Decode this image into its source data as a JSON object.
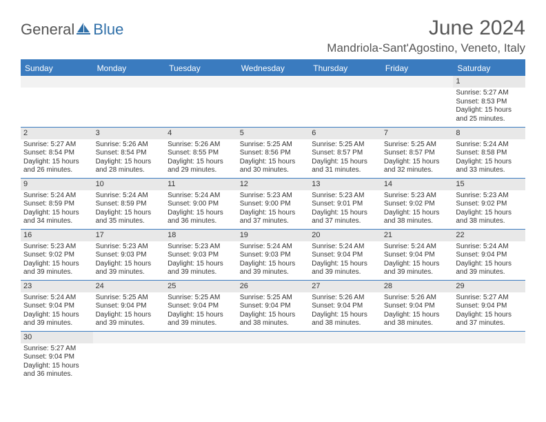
{
  "logo": {
    "general": "General",
    "blue": "Blue"
  },
  "header": {
    "month": "June 2024",
    "location": "Mandriola-Sant'Agostino, Veneto, Italy"
  },
  "colors": {
    "header_bg": "#3a7bbf",
    "border": "#3a7bbf",
    "daynum_bg": "#e8e8e8",
    "empty_daynum_bg": "#f2f2f2",
    "text": "#333333",
    "title": "#555555"
  },
  "daysOfWeek": [
    "Sunday",
    "Monday",
    "Tuesday",
    "Wednesday",
    "Thursday",
    "Friday",
    "Saturday"
  ],
  "grid": [
    [
      null,
      null,
      null,
      null,
      null,
      null,
      {
        "n": "1",
        "sunrise": "Sunrise: 5:27 AM",
        "sunset": "Sunset: 8:53 PM",
        "daylight": "Daylight: 15 hours and 25 minutes."
      }
    ],
    [
      {
        "n": "2",
        "sunrise": "Sunrise: 5:27 AM",
        "sunset": "Sunset: 8:54 PM",
        "daylight": "Daylight: 15 hours and 26 minutes."
      },
      {
        "n": "3",
        "sunrise": "Sunrise: 5:26 AM",
        "sunset": "Sunset: 8:54 PM",
        "daylight": "Daylight: 15 hours and 28 minutes."
      },
      {
        "n": "4",
        "sunrise": "Sunrise: 5:26 AM",
        "sunset": "Sunset: 8:55 PM",
        "daylight": "Daylight: 15 hours and 29 minutes."
      },
      {
        "n": "5",
        "sunrise": "Sunrise: 5:25 AM",
        "sunset": "Sunset: 8:56 PM",
        "daylight": "Daylight: 15 hours and 30 minutes."
      },
      {
        "n": "6",
        "sunrise": "Sunrise: 5:25 AM",
        "sunset": "Sunset: 8:57 PM",
        "daylight": "Daylight: 15 hours and 31 minutes."
      },
      {
        "n": "7",
        "sunrise": "Sunrise: 5:25 AM",
        "sunset": "Sunset: 8:57 PM",
        "daylight": "Daylight: 15 hours and 32 minutes."
      },
      {
        "n": "8",
        "sunrise": "Sunrise: 5:24 AM",
        "sunset": "Sunset: 8:58 PM",
        "daylight": "Daylight: 15 hours and 33 minutes."
      }
    ],
    [
      {
        "n": "9",
        "sunrise": "Sunrise: 5:24 AM",
        "sunset": "Sunset: 8:59 PM",
        "daylight": "Daylight: 15 hours and 34 minutes."
      },
      {
        "n": "10",
        "sunrise": "Sunrise: 5:24 AM",
        "sunset": "Sunset: 8:59 PM",
        "daylight": "Daylight: 15 hours and 35 minutes."
      },
      {
        "n": "11",
        "sunrise": "Sunrise: 5:24 AM",
        "sunset": "Sunset: 9:00 PM",
        "daylight": "Daylight: 15 hours and 36 minutes."
      },
      {
        "n": "12",
        "sunrise": "Sunrise: 5:23 AM",
        "sunset": "Sunset: 9:00 PM",
        "daylight": "Daylight: 15 hours and 37 minutes."
      },
      {
        "n": "13",
        "sunrise": "Sunrise: 5:23 AM",
        "sunset": "Sunset: 9:01 PM",
        "daylight": "Daylight: 15 hours and 37 minutes."
      },
      {
        "n": "14",
        "sunrise": "Sunrise: 5:23 AM",
        "sunset": "Sunset: 9:02 PM",
        "daylight": "Daylight: 15 hours and 38 minutes."
      },
      {
        "n": "15",
        "sunrise": "Sunrise: 5:23 AM",
        "sunset": "Sunset: 9:02 PM",
        "daylight": "Daylight: 15 hours and 38 minutes."
      }
    ],
    [
      {
        "n": "16",
        "sunrise": "Sunrise: 5:23 AM",
        "sunset": "Sunset: 9:02 PM",
        "daylight": "Daylight: 15 hours and 39 minutes."
      },
      {
        "n": "17",
        "sunrise": "Sunrise: 5:23 AM",
        "sunset": "Sunset: 9:03 PM",
        "daylight": "Daylight: 15 hours and 39 minutes."
      },
      {
        "n": "18",
        "sunrise": "Sunrise: 5:23 AM",
        "sunset": "Sunset: 9:03 PM",
        "daylight": "Daylight: 15 hours and 39 minutes."
      },
      {
        "n": "19",
        "sunrise": "Sunrise: 5:24 AM",
        "sunset": "Sunset: 9:03 PM",
        "daylight": "Daylight: 15 hours and 39 minutes."
      },
      {
        "n": "20",
        "sunrise": "Sunrise: 5:24 AM",
        "sunset": "Sunset: 9:04 PM",
        "daylight": "Daylight: 15 hours and 39 minutes."
      },
      {
        "n": "21",
        "sunrise": "Sunrise: 5:24 AM",
        "sunset": "Sunset: 9:04 PM",
        "daylight": "Daylight: 15 hours and 39 minutes."
      },
      {
        "n": "22",
        "sunrise": "Sunrise: 5:24 AM",
        "sunset": "Sunset: 9:04 PM",
        "daylight": "Daylight: 15 hours and 39 minutes."
      }
    ],
    [
      {
        "n": "23",
        "sunrise": "Sunrise: 5:24 AM",
        "sunset": "Sunset: 9:04 PM",
        "daylight": "Daylight: 15 hours and 39 minutes."
      },
      {
        "n": "24",
        "sunrise": "Sunrise: 5:25 AM",
        "sunset": "Sunset: 9:04 PM",
        "daylight": "Daylight: 15 hours and 39 minutes."
      },
      {
        "n": "25",
        "sunrise": "Sunrise: 5:25 AM",
        "sunset": "Sunset: 9:04 PM",
        "daylight": "Daylight: 15 hours and 39 minutes."
      },
      {
        "n": "26",
        "sunrise": "Sunrise: 5:25 AM",
        "sunset": "Sunset: 9:04 PM",
        "daylight": "Daylight: 15 hours and 38 minutes."
      },
      {
        "n": "27",
        "sunrise": "Sunrise: 5:26 AM",
        "sunset": "Sunset: 9:04 PM",
        "daylight": "Daylight: 15 hours and 38 minutes."
      },
      {
        "n": "28",
        "sunrise": "Sunrise: 5:26 AM",
        "sunset": "Sunset: 9:04 PM",
        "daylight": "Daylight: 15 hours and 38 minutes."
      },
      {
        "n": "29",
        "sunrise": "Sunrise: 5:27 AM",
        "sunset": "Sunset: 9:04 PM",
        "daylight": "Daylight: 15 hours and 37 minutes."
      }
    ],
    [
      {
        "n": "30",
        "sunrise": "Sunrise: 5:27 AM",
        "sunset": "Sunset: 9:04 PM",
        "daylight": "Daylight: 15 hours and 36 minutes."
      },
      null,
      null,
      null,
      null,
      null,
      null
    ]
  ]
}
